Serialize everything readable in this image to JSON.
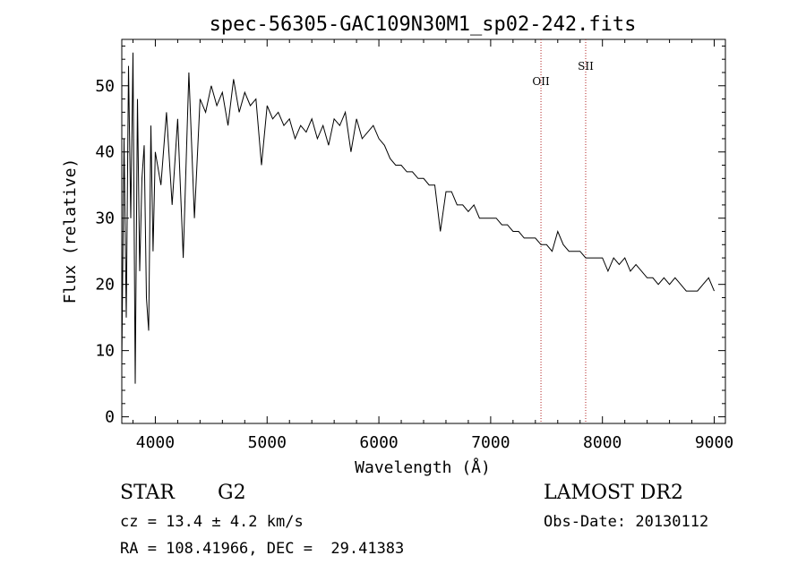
{
  "chart_data": {
    "type": "line",
    "title": "spec-56305-GAC109N30M1_sp02-242.fits",
    "xlabel": "Wavelength (Å)",
    "ylabel": "Flux (relative)",
    "xlim": [
      3700,
      9100
    ],
    "ylim": [
      -1,
      57
    ],
    "xticks": [
      4000,
      5000,
      6000,
      7000,
      8000,
      9000
    ],
    "yticks": [
      0,
      10,
      20,
      30,
      40,
      50
    ],
    "grid": false,
    "line_color": "#000000",
    "annotation_color": "#b22222",
    "lines": [
      {
        "label": "OII",
        "x": 7450
      },
      {
        "label": "SII",
        "x": 7850
      }
    ],
    "series": [
      {
        "x": [
          3700,
          3720,
          3740,
          3760,
          3780,
          3800,
          3820,
          3840,
          3860,
          3880,
          3900,
          3920,
          3940,
          3960,
          3980,
          4000,
          4050,
          4100,
          4150,
          4200,
          4250,
          4300,
          4350,
          4400,
          4450,
          4500,
          4550,
          4600,
          4650,
          4700,
          4750,
          4800,
          4850,
          4900,
          4950,
          5000,
          5050,
          5100,
          5150,
          5200,
          5250,
          5300,
          5350,
          5400,
          5450,
          5500,
          5550,
          5600,
          5650,
          5700,
          5750,
          5800,
          5850,
          5900,
          5950,
          6000,
          6050,
          6100,
          6150,
          6200,
          6250,
          6300,
          6350,
          6400,
          6450,
          6500,
          6550,
          6600,
          6650,
          6700,
          6750,
          6800,
          6850,
          6900,
          6950,
          7000,
          7050,
          7100,
          7150,
          7200,
          7250,
          7300,
          7350,
          7400,
          7450,
          7500,
          7550,
          7600,
          7650,
          7700,
          7750,
          7800,
          7850,
          7900,
          7950,
          8000,
          8050,
          8100,
          8150,
          8200,
          8250,
          8300,
          8350,
          8400,
          8450,
          8500,
          8550,
          8600,
          8650,
          8700,
          8750,
          8800,
          8850,
          8900,
          8950,
          9000
        ],
        "y": [
          8,
          42,
          15,
          53,
          30,
          55,
          5,
          48,
          22,
          36,
          41,
          18,
          13,
          44,
          25,
          40,
          35,
          46,
          32,
          45,
          24,
          52,
          30,
          48,
          46,
          50,
          47,
          49,
          44,
          51,
          46,
          49,
          47,
          48,
          38,
          47,
          45,
          46,
          44,
          45,
          42,
          44,
          43,
          45,
          42,
          44,
          41,
          45,
          44,
          46,
          40,
          45,
          42,
          43,
          44,
          42,
          41,
          39,
          38,
          38,
          37,
          37,
          36,
          36,
          35,
          35,
          28,
          34,
          34,
          32,
          32,
          31,
          32,
          30,
          30,
          30,
          30,
          29,
          29,
          28,
          28,
          27,
          27,
          27,
          26,
          26,
          25,
          28,
          26,
          25,
          25,
          25,
          24,
          24,
          24,
          24,
          22,
          24,
          23,
          24,
          22,
          23,
          22,
          21,
          21,
          20,
          21,
          20,
          21,
          20,
          19,
          19,
          19,
          20,
          21,
          19
        ]
      }
    ]
  },
  "info": {
    "object_class": "STAR",
    "subclass": "G2",
    "survey": "LAMOST DR2",
    "velocity": "cz = 13.4 ± 4.2 km/s",
    "obs_date": "Obs-Date: 20130112",
    "coords": "RA = 108.41966, DEC =  29.41383"
  }
}
